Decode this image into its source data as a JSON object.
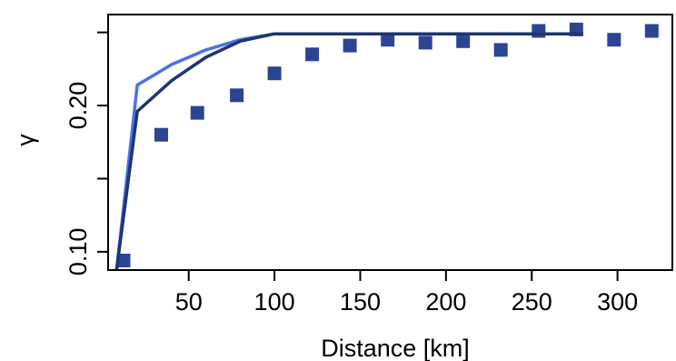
{
  "chart_data": {
    "type": "scatter",
    "title": "",
    "xlabel": "Distance [km]",
    "ylabel": "γ",
    "xlim": [
      3.0,
      332.0
    ],
    "ylim": [
      0.0875,
      0.2622
    ],
    "x_ticks": [
      50,
      100,
      150,
      200,
      250,
      300
    ],
    "x_tick_labels": [
      "50",
      "100",
      "150",
      "200",
      "250",
      "300"
    ],
    "y_ticks": [
      0.1,
      0.15,
      0.2,
      0.25
    ],
    "y_tick_labels": [
      "0.10",
      "",
      "0.20",
      ""
    ],
    "grid": false,
    "series": [
      {
        "style": "points",
        "color": "#2b4594",
        "x": [
          12,
          34,
          55,
          78,
          100,
          122,
          144,
          166,
          188,
          210,
          232,
          254,
          276,
          298,
          320
        ],
        "y": [
          0.094,
          0.18,
          0.195,
          0.207,
          0.222,
          0.235,
          0.241,
          0.245,
          0.243,
          0.244,
          0.238,
          0.251,
          0.252,
          0.245,
          0.251
        ]
      },
      {
        "style": "line",
        "color": "#4a72e8",
        "x": [
          8,
          20,
          40,
          60,
          80,
          100,
          280
        ],
        "y": [
          0.088,
          0.214,
          0.228,
          0.238,
          0.245,
          0.249,
          0.249
        ]
      },
      {
        "style": "line",
        "color": "#1f3470",
        "x": [
          8,
          20,
          40,
          60,
          80,
          100,
          280
        ],
        "y": [
          0.088,
          0.196,
          0.217,
          0.233,
          0.244,
          0.249,
          0.249
        ]
      }
    ]
  }
}
